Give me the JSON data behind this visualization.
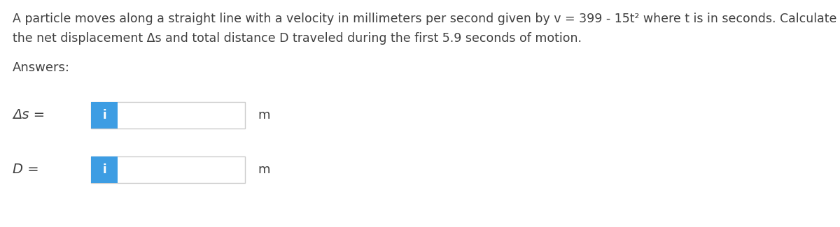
{
  "title_line1": "A particle moves along a straight line with a velocity in millimeters per second given by v = 399 - 15t² where t is in seconds. Calculate",
  "title_line2": "the net displacement Δs and total distance D traveled during the first 5.9 seconds of motion.",
  "answers_label": "Answers:",
  "row1_label": "Δs =",
  "row2_label": "D =",
  "unit_label": "m",
  "icon_text": "i",
  "bg_color": "#ffffff",
  "box_border_color": "#cccccc",
  "box_fill_color": "#ffffff",
  "icon_bg_color": "#3d9de3",
  "icon_text_color": "#ffffff",
  "text_color": "#404040",
  "title_fontsize": 12.5,
  "label_fontsize": 14,
  "answers_fontsize": 13,
  "unit_fontsize": 13,
  "icon_fontsize": 12
}
